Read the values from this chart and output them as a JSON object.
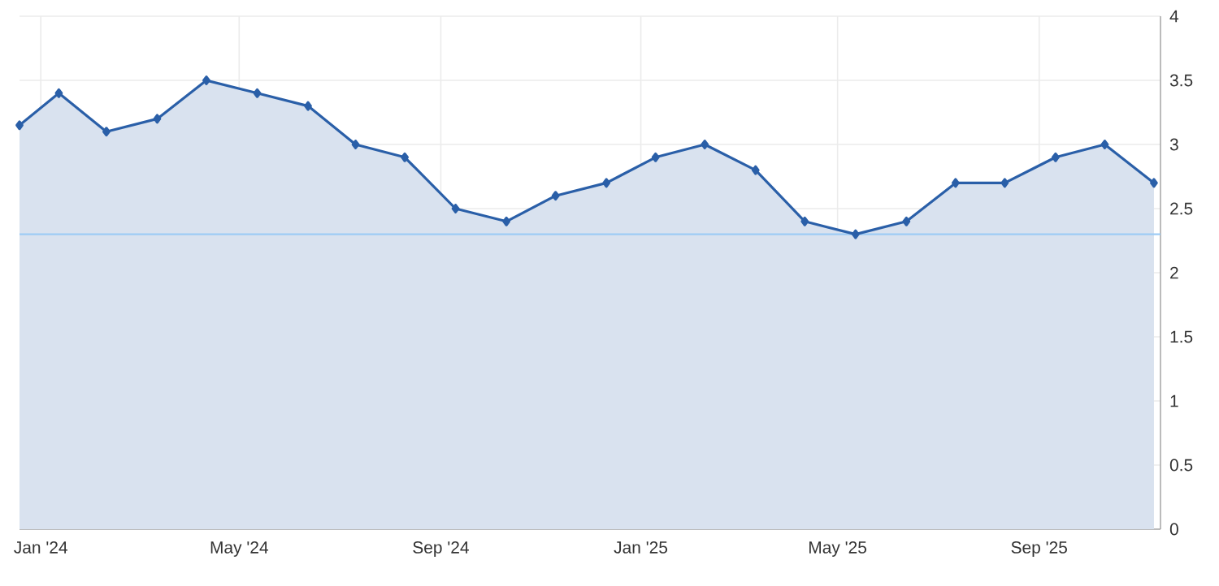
{
  "chart_data": {
    "type": "area",
    "color": "#2a5fa8",
    "x": [
      "2023-12-19",
      "2024-01-12",
      "2024-02-10",
      "2024-03-12",
      "2024-04-11",
      "2024-05-12",
      "2024-06-12",
      "2024-07-11",
      "2024-08-10",
      "2024-09-10",
      "2024-10-11",
      "2024-11-10",
      "2024-12-11",
      "2025-01-10",
      "2025-02-09",
      "2025-03-12",
      "2025-04-11",
      "2025-05-12",
      "2025-06-12",
      "2025-07-12",
      "2025-08-11",
      "2025-09-11",
      "2025-10-11",
      "2025-11-10"
    ],
    "values": [
      3.15,
      3.4,
      3.1,
      3.2,
      3.5,
      3.4,
      3.3,
      3.0,
      2.9,
      2.5,
      2.4,
      2.6,
      2.7,
      2.9,
      3.0,
      2.8,
      2.4,
      2.3,
      2.4,
      2.7,
      2.7,
      2.9,
      3.0,
      2.7
    ],
    "xlim": [
      "2023-12-19",
      "2025-11-14"
    ],
    "xticks": [
      {
        "value": "2024-01-01",
        "label": "Jan '24"
      },
      {
        "value": "2024-05-01",
        "label": "May '24"
      },
      {
        "value": "2024-09-01",
        "label": "Sep '24"
      },
      {
        "value": "2025-01-01",
        "label": "Jan '25"
      },
      {
        "value": "2025-05-01",
        "label": "May '25"
      },
      {
        "value": "2025-09-01",
        "label": "Sep '25"
      }
    ],
    "ylim": [
      0,
      4
    ],
    "yticks": [
      0,
      0.5,
      1,
      1.5,
      2,
      2.5,
      3,
      3.5,
      4
    ],
    "grid": true,
    "marker": "diamond",
    "line_style": "solid",
    "ref_lines": [
      {
        "axis": "y",
        "value": 2.3,
        "color": "#9ecbf5"
      }
    ]
  }
}
